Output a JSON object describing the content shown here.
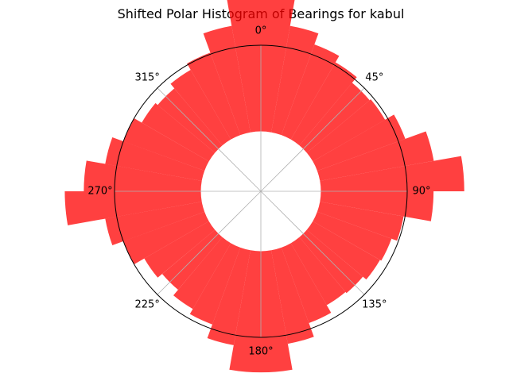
{
  "chart_data": {
    "type": "polar_bar",
    "title": "Shifted Polar Histogram of Bearings for kabul",
    "theta_zero": "N",
    "theta_direction": "clockwise",
    "angle_tick_labels": [
      "0°",
      "45°",
      "90°",
      "135°",
      "180°",
      "225°",
      "270°",
      "315°"
    ],
    "radial_tick_labels": [],
    "bar_width_deg": 10,
    "bar_base": 0.41,
    "r_max": 1.0,
    "bins": [
      {
        "angle": 5,
        "value": 1.0
      },
      {
        "angle": 15,
        "value": 0.74
      },
      {
        "angle": 25,
        "value": 0.66
      },
      {
        "angle": 35,
        "value": 0.61
      },
      {
        "angle": 45,
        "value": 0.56
      },
      {
        "angle": 55,
        "value": 0.57
      },
      {
        "angle": 65,
        "value": 0.64
      },
      {
        "angle": 75,
        "value": 0.79
      },
      {
        "angle": 85,
        "value": 0.98
      },
      {
        "angle": 95,
        "value": 0.77
      },
      {
        "angle": 105,
        "value": 0.58
      },
      {
        "angle": 115,
        "value": 0.54
      },
      {
        "angle": 125,
        "value": 0.53
      },
      {
        "angle": 135,
        "value": 0.5
      },
      {
        "angle": 145,
        "value": 0.49
      },
      {
        "angle": 155,
        "value": 0.55
      },
      {
        "angle": 165,
        "value": 0.65
      },
      {
        "angle": 175,
        "value": 0.83
      },
      {
        "angle": 185,
        "value": 0.83
      },
      {
        "angle": 195,
        "value": 0.66
      },
      {
        "angle": 205,
        "value": 0.56
      },
      {
        "angle": 215,
        "value": 0.52
      },
      {
        "angle": 225,
        "value": 0.47
      },
      {
        "angle": 235,
        "value": 0.51
      },
      {
        "angle": 245,
        "value": 0.59
      },
      {
        "angle": 255,
        "value": 0.67
      },
      {
        "angle": 265,
        "value": 0.93
      },
      {
        "angle": 275,
        "value": 0.8
      },
      {
        "angle": 285,
        "value": 0.67
      },
      {
        "angle": 295,
        "value": 0.59
      },
      {
        "angle": 305,
        "value": 0.53
      },
      {
        "angle": 315,
        "value": 0.51
      },
      {
        "angle": 325,
        "value": 0.55
      },
      {
        "angle": 335,
        "value": 0.6
      },
      {
        "angle": 345,
        "value": 0.74
      },
      {
        "angle": 355,
        "value": 0.94
      }
    ],
    "bar_color": "#ff0000",
    "bar_alpha": 0.75,
    "grid": true,
    "grid_color": "#b0b0b0",
    "frame_color": "#000000"
  }
}
